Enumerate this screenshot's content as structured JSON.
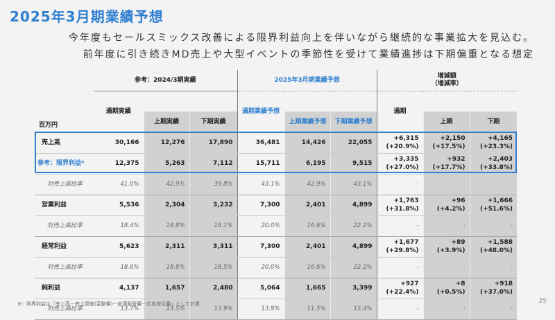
{
  "title": "2025年3月期業績予想",
  "subtitle_lines": [
    "今年度もセールスミックス改善による限界利益向上を伴いながら継続的な事業拡大を見込む。",
    "前年度に引き続きMD売上や大型イベントの季節性を受けて業績進捗は下期偏重となる想定"
  ],
  "header": {
    "unit": "百万円",
    "group_prev": "参考：2024/3期実績",
    "group_fc": "2025年3月期業績予想",
    "group_diff": "増減額",
    "group_diff2": "（増減率）",
    "cols": [
      "通期実績",
      "上期実績",
      "下期実績",
      "通期業績予想",
      "上期業績予想",
      "下期業績予想",
      "通期",
      "上期",
      "下期"
    ]
  },
  "rows": [
    {
      "label": "売上高",
      "v": [
        "30,166",
        "12,276",
        "17,890",
        "36,481",
        "14,426",
        "22,055"
      ],
      "d": [
        "+6,315",
        "+2,150",
        "+4,165"
      ],
      "r": [
        "(+20.9%)",
        "(+17.5%)",
        "(+23.3%)"
      ]
    },
    {
      "label": "参考：限界利益*",
      "v": [
        "12,375",
        "5,263",
        "7,112",
        "15,711",
        "6,195",
        "9,515"
      ],
      "d": [
        "+3,335",
        "+932",
        "+2,403"
      ],
      "r": [
        "(+27.0%)",
        "(+17.7%)",
        "(+33.8%)"
      ],
      "ratio": {
        "label": "対売上高比率",
        "v": [
          "41.0%",
          "42.9%",
          "39.8%",
          "43.1%",
          "42.9%",
          "43.1%",
          "-",
          "-",
          "-"
        ]
      }
    },
    {
      "label": "営業利益",
      "v": [
        "5,536",
        "2,304",
        "3,232",
        "7,300",
        "2,401",
        "4,899"
      ],
      "d": [
        "+1,763",
        "+96",
        "+1,666"
      ],
      "r": [
        "(+31.8%)",
        "(+4.2%)",
        "(+51.6%)"
      ],
      "ratio": {
        "label": "対売上高比率",
        "v": [
          "18.4%",
          "18.8%",
          "18.1%",
          "20.0%",
          "16.6%",
          "22.2%",
          "-",
          "-",
          "-"
        ]
      }
    },
    {
      "label": "経常利益",
      "v": [
        "5,623",
        "2,311",
        "3,311",
        "7,300",
        "2,401",
        "4,899"
      ],
      "d": [
        "+1,677",
        "+89",
        "+1,588"
      ],
      "r": [
        "(+29.8%)",
        "(+3.9%)",
        "(+48.0%)"
      ],
      "ratio": {
        "label": "対売上高比率",
        "v": [
          "18.6%",
          "18.8%",
          "18.5%",
          "20.0%",
          "16.6%",
          "22.2%",
          "-",
          "-",
          "-"
        ]
      }
    },
    {
      "label": "純利益",
      "v": [
        "4,137",
        "1,657",
        "2,480",
        "5,064",
        "1,665",
        "3,399"
      ],
      "d": [
        "+927",
        "+8",
        "+918"
      ],
      "r": [
        "(+22.4%)",
        "(+0.5%)",
        "(+37.0%)"
      ],
      "ratio": {
        "label": "対売上高比率",
        "v": [
          "13.7%",
          "13.5%",
          "13.9%",
          "13.9%",
          "11.5%",
          "15.4%",
          "-",
          "-",
          "-"
        ]
      }
    }
  ],
  "footnote": "※：限界利益は「売上高－売上原価(変動費)－倉庫販管費－広告宣伝費」として計算",
  "page_number": "25",
  "colors": {
    "accent": "#2f7fd0",
    "gray_col": "#d1d1d1"
  }
}
